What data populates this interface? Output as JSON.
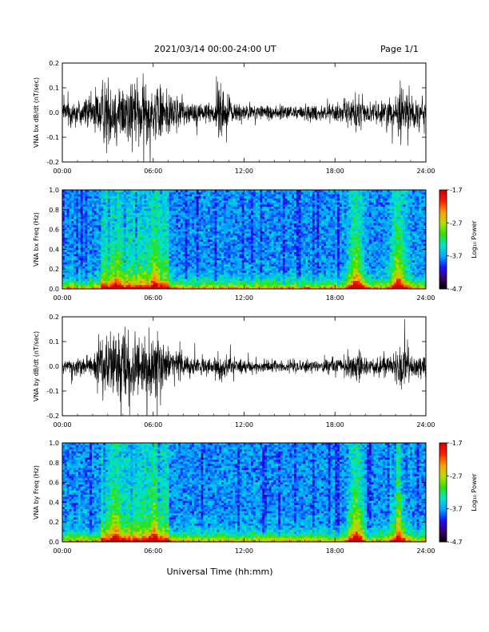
{
  "header": {
    "title": "2021/03/14  00:00-24:00 UT",
    "page": "Page 1/1"
  },
  "xlabel": "Universal Time (hh:mm)",
  "colorbar": {
    "label": "Log₁₀ Power",
    "ticks": [
      "-1.7",
      "-2.7",
      "-3.7",
      "-4.7"
    ],
    "range": [
      -4.7,
      -1.7
    ],
    "palette": [
      "#000000",
      "#3a0070",
      "#1a10ff",
      "#00a8ff",
      "#00e8c8",
      "#30e000",
      "#b8e000",
      "#ffa000",
      "#ff2000",
      "#d40000"
    ]
  },
  "chart_data": [
    {
      "type": "line",
      "ylabel": "VNA bx dB/dt (nT/sec)",
      "xlim": [
        "00:00",
        "24:00"
      ],
      "ylim": [
        -0.2,
        0.2
      ],
      "x_ticks": [
        "00:00",
        "06:00",
        "12:00",
        "18:00",
        "24:00"
      ],
      "y_ticks": [
        "0.2",
        "0.1",
        "0.0",
        "-0.1",
        "-0.2"
      ],
      "envelope": {
        "x_hours": [
          0,
          1,
          2,
          2.5,
          3,
          4,
          5,
          6,
          6.5,
          7,
          8,
          9,
          10,
          10.3,
          11,
          12,
          13,
          14,
          16,
          18,
          19,
          19.5,
          20,
          21,
          22,
          22.3,
          23,
          24
        ],
        "amplitude": [
          0.08,
          0.1,
          0.12,
          0.18,
          0.2,
          0.2,
          0.2,
          0.2,
          0.19,
          0.14,
          0.09,
          0.07,
          0.07,
          0.2,
          0.08,
          0.05,
          0.05,
          0.05,
          0.05,
          0.06,
          0.09,
          0.12,
          0.06,
          0.07,
          0.1,
          0.2,
          0.1,
          0.1
        ]
      }
    },
    {
      "type": "heatmap",
      "ylabel": "VNA bx Freq (Hz)",
      "xlim": [
        "00:00",
        "24:00"
      ],
      "ylim": [
        0.0,
        1.0
      ],
      "x_ticks": [
        "00:00",
        "06:00",
        "12:00",
        "18:00",
        "24:00"
      ],
      "y_ticks": [
        "1.0",
        "0.8",
        "0.6",
        "0.4",
        "0.2",
        "0.0"
      ],
      "color_range": [
        -4.7,
        -1.7
      ],
      "bright_events_hours": [
        3.5,
        6.1,
        19.4,
        22.2
      ]
    },
    {
      "type": "line",
      "ylabel": "VNA by dB/dt (nT/sec)",
      "xlim": [
        "00:00",
        "24:00"
      ],
      "ylim": [
        -0.2,
        0.2
      ],
      "x_ticks": [
        "00:00",
        "06:00",
        "12:00",
        "18:00",
        "24:00"
      ],
      "y_ticks": [
        "0.2",
        "0.1",
        "0.0",
        "-0.1",
        "-0.2"
      ],
      "envelope": {
        "x_hours": [
          0,
          1,
          2,
          2.5,
          3,
          4,
          5,
          6,
          6.5,
          7,
          8,
          9,
          10,
          10.3,
          11,
          12,
          13,
          14,
          16,
          18,
          19,
          19.5,
          20,
          21,
          22,
          22.3,
          23,
          24
        ],
        "amplitude": [
          0.05,
          0.06,
          0.08,
          0.15,
          0.2,
          0.2,
          0.2,
          0.2,
          0.18,
          0.12,
          0.08,
          0.06,
          0.06,
          0.12,
          0.06,
          0.04,
          0.04,
          0.04,
          0.04,
          0.05,
          0.08,
          0.1,
          0.05,
          0.06,
          0.09,
          0.2,
          0.08,
          0.07
        ]
      }
    },
    {
      "type": "heatmap",
      "ylabel": "VNA by Freq (Hz)",
      "xlim": [
        "00:00",
        "24:00"
      ],
      "ylim": [
        0.0,
        1.0
      ],
      "x_ticks": [
        "00:00",
        "06:00",
        "12:00",
        "18:00",
        "24:00"
      ],
      "y_ticks": [
        "1.0",
        "0.8",
        "0.6",
        "0.4",
        "0.2",
        "0.0"
      ],
      "color_range": [
        -4.7,
        -1.7
      ],
      "bright_events_hours": [
        3.5,
        6.1,
        19.4,
        22.2
      ]
    }
  ]
}
